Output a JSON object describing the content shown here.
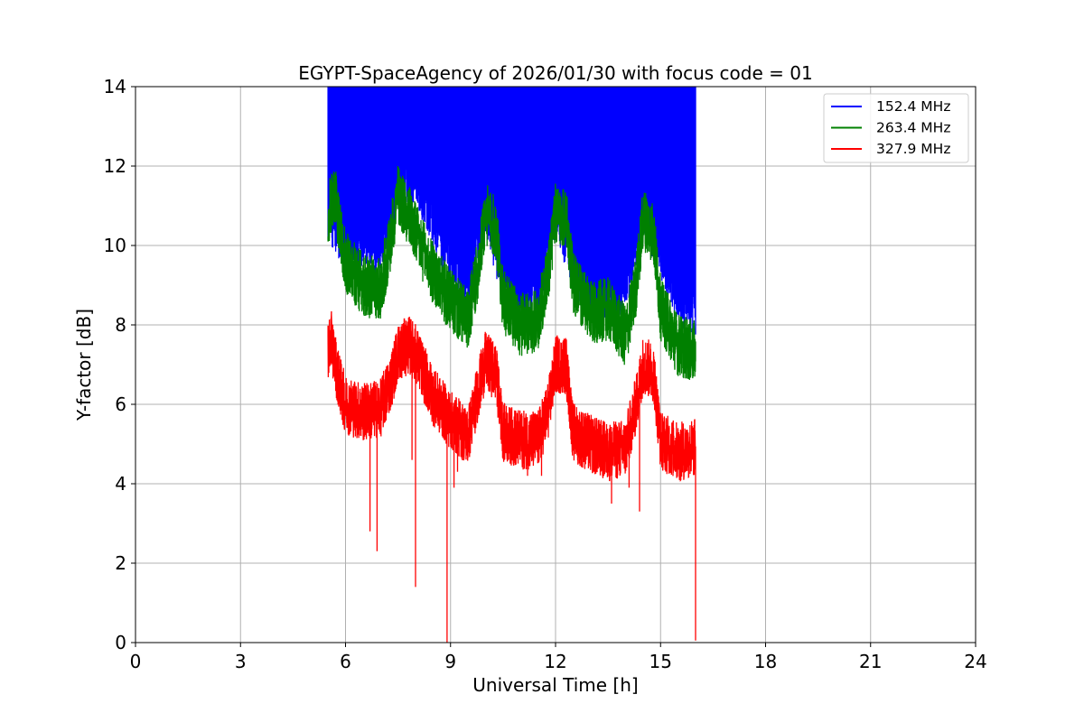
{
  "chart_data": {
    "type": "line",
    "title": "EGYPT-SpaceAgency of 2026/01/30 with focus code = 01",
    "xlabel": "Universal Time [h]",
    "ylabel": "Y-factor [dB]",
    "xlim": [
      0,
      24
    ],
    "ylim": [
      0,
      14
    ],
    "xticks": [
      0,
      3,
      6,
      9,
      12,
      15,
      18,
      21,
      24
    ],
    "yticks": [
      0,
      2,
      4,
      6,
      8,
      10,
      12,
      14
    ],
    "grid": true,
    "legend_position": "top-right",
    "series": [
      {
        "name": "152.4 MHz",
        "color": "#0000ff",
        "lower_envelope": {
          "x": [
            5.5,
            6.0,
            6.5,
            7.0,
            7.5,
            8.0,
            8.5,
            9.0,
            9.5,
            10.0,
            10.5,
            11.0,
            11.5,
            12.0,
            12.5,
            13.0,
            13.5,
            14.0,
            14.5,
            15.0,
            15.5,
            16.0
          ],
          "y": [
            10.6,
            10.0,
            9.9,
            9.8,
            11.4,
            11.6,
            10.5,
            9.6,
            8.8,
            10.9,
            9.1,
            8.4,
            8.8,
            10.9,
            9.4,
            8.7,
            8.7,
            8.9,
            10.9,
            9.7,
            8.6,
            8.3
          ]
        },
        "upper": 14.0
      },
      {
        "name": "263.4 MHz",
        "color": "#008000",
        "x": [
          5.5,
          5.7,
          6.0,
          6.5,
          7.0,
          7.3,
          7.5,
          7.8,
          8.0,
          8.5,
          9.0,
          9.5,
          9.8,
          10.0,
          10.3,
          10.5,
          11.0,
          11.5,
          11.8,
          12.0,
          12.3,
          12.5,
          13.0,
          13.5,
          14.0,
          14.3,
          14.5,
          14.8,
          15.0,
          15.5,
          16.0
        ],
        "y": [
          10.8,
          11.2,
          9.6,
          9.0,
          8.9,
          10.2,
          11.3,
          10.8,
          10.3,
          9.3,
          8.6,
          8.1,
          9.5,
          10.8,
          10.4,
          8.6,
          8.0,
          8.1,
          9.4,
          10.8,
          10.7,
          9.1,
          8.3,
          8.4,
          7.7,
          9.0,
          10.7,
          10.3,
          8.4,
          7.5,
          7.3
        ],
        "spread": 0.8
      },
      {
        "name": "327.9 MHz",
        "color": "#ff0000",
        "x": [
          5.5,
          5.6,
          5.8,
          6.0,
          6.5,
          7.0,
          7.3,
          7.5,
          7.8,
          8.0,
          8.5,
          9.0,
          9.5,
          9.8,
          10.0,
          10.3,
          10.5,
          11.0,
          11.5,
          11.8,
          12.0,
          12.3,
          12.5,
          13.0,
          13.5,
          14.0,
          14.3,
          14.5,
          14.8,
          15.0,
          15.5,
          16.0
        ],
        "y": [
          7.4,
          7.6,
          6.6,
          6.0,
          5.8,
          5.9,
          6.6,
          7.3,
          7.5,
          7.3,
          6.2,
          5.6,
          5.2,
          6.4,
          7.1,
          6.8,
          5.3,
          5.1,
          5.1,
          5.9,
          7.0,
          7.0,
          5.3,
          5.0,
          4.8,
          4.9,
          6.0,
          7.0,
          6.8,
          5.1,
          4.8,
          4.9
        ],
        "spread": 0.75,
        "dips": [
          [
            6.7,
            2.8
          ],
          [
            6.9,
            2.3
          ],
          [
            8.0,
            1.4
          ],
          [
            8.9,
            0.0
          ],
          [
            7.9,
            4.6
          ],
          [
            9.1,
            3.9
          ],
          [
            9.2,
            4.3
          ],
          [
            11.2,
            4.2
          ],
          [
            11.6,
            4.2
          ],
          [
            13.1,
            4.3
          ],
          [
            13.6,
            3.5
          ],
          [
            14.1,
            3.9
          ],
          [
            14.4,
            3.3
          ],
          [
            16.0,
            0.05
          ]
        ]
      }
    ]
  }
}
